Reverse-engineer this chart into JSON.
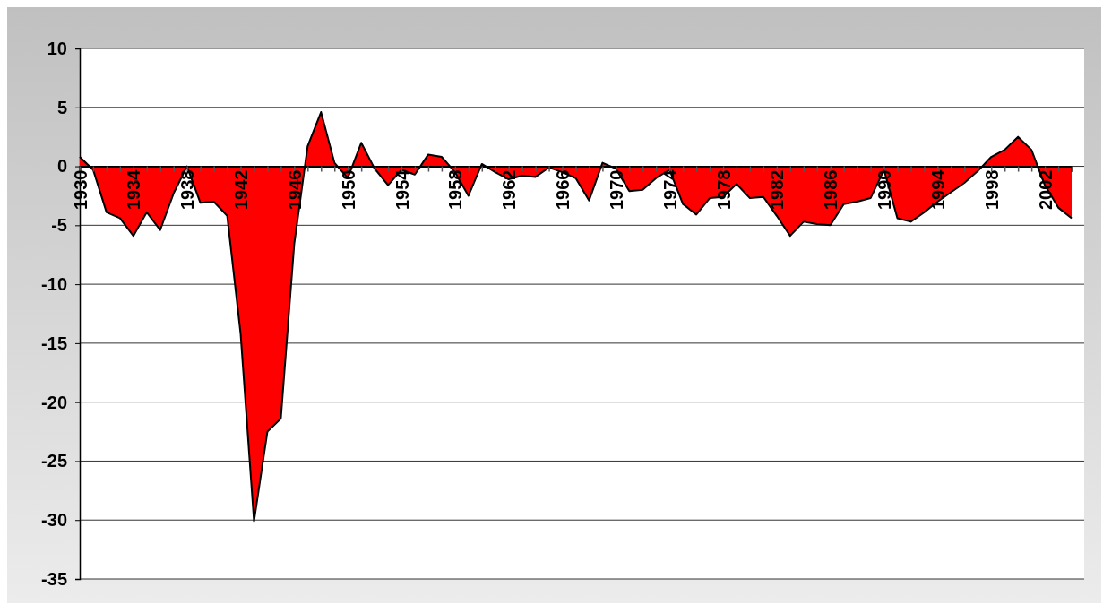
{
  "chart_data": {
    "type": "area",
    "x": [
      1930,
      1931,
      1932,
      1933,
      1934,
      1935,
      1936,
      1937,
      1938,
      1939,
      1940,
      1941,
      1942,
      1943,
      1944,
      1945,
      1946,
      1947,
      1948,
      1949,
      1950,
      1951,
      1952,
      1953,
      1954,
      1955,
      1956,
      1957,
      1958,
      1959,
      1960,
      1961,
      1962,
      1963,
      1964,
      1965,
      1966,
      1967,
      1968,
      1969,
      1970,
      1971,
      1972,
      1973,
      1974,
      1975,
      1976,
      1977,
      1978,
      1979,
      1980,
      1981,
      1982,
      1983,
      1984,
      1985,
      1986,
      1987,
      1988,
      1989,
      1990,
      1991,
      1992,
      1993,
      1994,
      1995,
      1996,
      1997,
      1998,
      1999,
      2000,
      2001,
      2002,
      2003,
      2004
    ],
    "series": [
      {
        "color": "#ff0000",
        "values": [
          0.8,
          -0.3,
          -3.9,
          -4.4,
          -5.9,
          -3.9,
          -5.4,
          -2.3,
          0,
          -3.1,
          -3.0,
          -4.2,
          -14.2,
          -30.1,
          -22.5,
          -21.4,
          -6.6,
          1.7,
          4.6,
          0.3,
          -1.0,
          2.0,
          -0.2,
          -1.6,
          -0.3,
          -0.7,
          1.0,
          0.8,
          -0.5,
          -2.5,
          0.2,
          -0.5,
          -1.1,
          -0.8,
          -0.9,
          -0.1,
          -0.5,
          -1.0,
          -2.9,
          0.3,
          -0.2,
          -2.1,
          -2.0,
          -1.0,
          -0.3,
          -3.2,
          -4.1,
          -2.7,
          -2.6,
          -1.5,
          -2.7,
          -2.6,
          -4.2,
          -5.9,
          -4.7,
          -4.9,
          -5.0,
          -3.2,
          -3.0,
          -2.7,
          -0.3,
          -4.4,
          -4.7,
          -3.9,
          -3.0,
          -2.2,
          -1.4,
          -0.4,
          0.8,
          1.4,
          2.5,
          1.4,
          -1.6,
          -3.5,
          -4.4
        ]
      }
    ],
    "xlim": [
      1930,
      2004
    ],
    "xticks": [
      1930,
      {
        "value": 1931,
        "label": null
      },
      {
        "value": 1932,
        "label": null
      },
      {
        "value": 1933,
        "label": null
      },
      1934,
      {
        "value": 1935,
        "label": null
      },
      {
        "value": 1936,
        "label": null
      },
      {
        "value": 1937,
        "label": null
      },
      1938,
      {
        "value": 1939,
        "label": null
      },
      {
        "value": 1940,
        "label": null
      },
      {
        "value": 1941,
        "label": null
      },
      1942,
      {
        "value": 1943,
        "label": null
      },
      {
        "value": 1944,
        "label": null
      },
      {
        "value": 1945,
        "label": null
      },
      1946,
      {
        "value": 1947,
        "label": null
      },
      {
        "value": 1948,
        "label": null
      },
      {
        "value": 1949,
        "label": null
      },
      1950,
      {
        "value": 1951,
        "label": null
      },
      {
        "value": 1952,
        "label": null
      },
      {
        "value": 1953,
        "label": null
      },
      1954,
      {
        "value": 1955,
        "label": null
      },
      {
        "value": 1956,
        "label": null
      },
      {
        "value": 1957,
        "label": null
      },
      1958,
      {
        "value": 1959,
        "label": null
      },
      {
        "value": 1960,
        "label": null
      },
      {
        "value": 1961,
        "label": null
      },
      1962,
      {
        "value": 1963,
        "label": null
      },
      {
        "value": 1964,
        "label": null
      },
      {
        "value": 1965,
        "label": null
      },
      1966,
      {
        "value": 1967,
        "label": null
      },
      {
        "value": 1968,
        "label": null
      },
      {
        "value": 1969,
        "label": null
      },
      1970,
      {
        "value": 1971,
        "label": null
      },
      {
        "value": 1972,
        "label": null
      },
      {
        "value": 1973,
        "label": null
      },
      1974,
      {
        "value": 1975,
        "label": null
      },
      {
        "value": 1976,
        "label": null
      },
      {
        "value": 1977,
        "label": null
      },
      1978,
      {
        "value": 1979,
        "label": null
      },
      {
        "value": 1980,
        "label": null
      },
      {
        "value": 1981,
        "label": null
      },
      1982,
      {
        "value": 1983,
        "label": null
      },
      {
        "value": 1984,
        "label": null
      },
      {
        "value": 1985,
        "label": null
      },
      1986,
      {
        "value": 1987,
        "label": null
      },
      {
        "value": 1988,
        "label": null
      },
      {
        "value": 1989,
        "label": null
      },
      1990,
      {
        "value": 1991,
        "label": null
      },
      {
        "value": 1992,
        "label": null
      },
      {
        "value": 1993,
        "label": null
      },
      1994,
      {
        "value": 1995,
        "label": null
      },
      {
        "value": 1996,
        "label": null
      },
      {
        "value": 1997,
        "label": null
      },
      1998,
      {
        "value": 1999,
        "label": null
      },
      {
        "value": 2000,
        "label": null
      },
      {
        "value": 2001,
        "label": null
      },
      2002,
      {
        "value": 2003,
        "label": null
      },
      {
        "value": 2004,
        "label": null
      }
    ],
    "ylim": [
      -35,
      10
    ],
    "yticks": [
      -35,
      -30,
      -25,
      -20,
      -15,
      -10,
      -5,
      0,
      5,
      10
    ],
    "grid": "y"
  }
}
